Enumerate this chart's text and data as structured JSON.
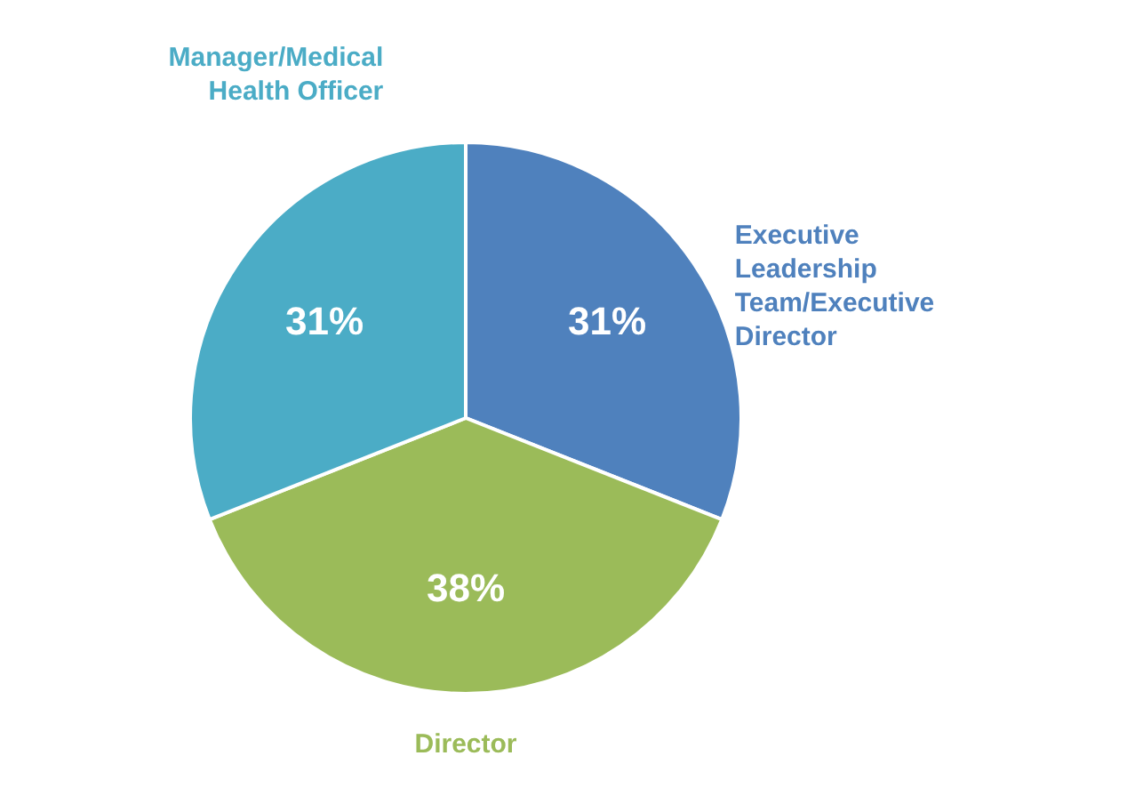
{
  "chart_data": {
    "type": "pie",
    "categories": [
      "Executive Leadership Team/Executive Director",
      "Director",
      "Manager/Medical Health Officer"
    ],
    "values": [
      31,
      38,
      31
    ],
    "colors": [
      "#4f81bd",
      "#9bbb59",
      "#4bacc6"
    ],
    "value_labels": [
      "31%",
      "38%",
      "31%"
    ]
  }
}
